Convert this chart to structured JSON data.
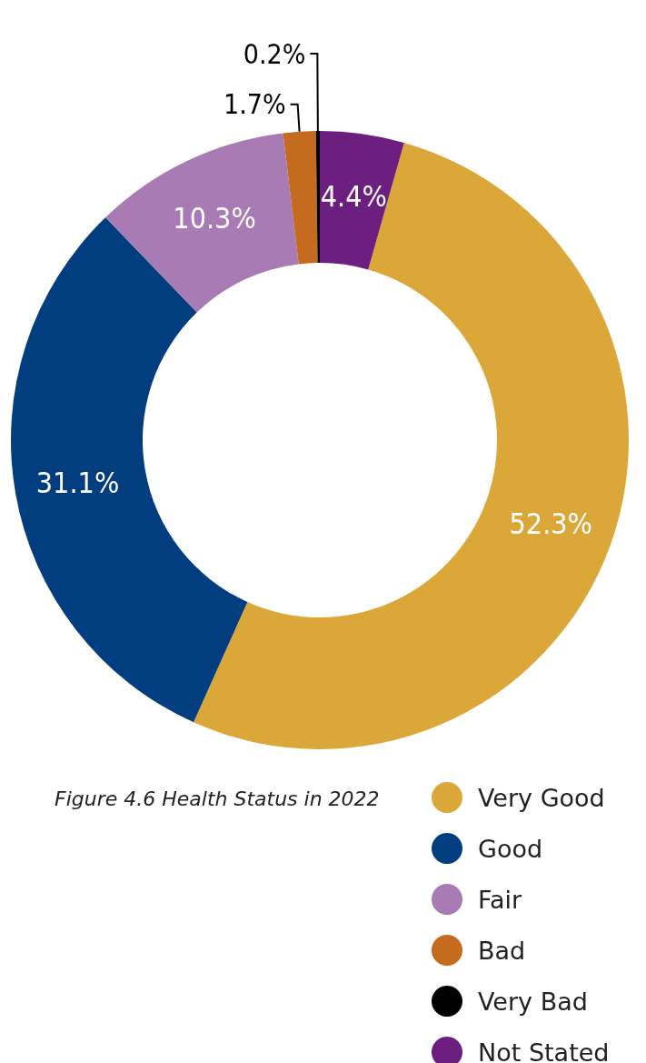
{
  "chart_data": {
    "type": "donut",
    "title": "Figure 4.6 Health Status in 2022",
    "categories": [
      "Very Good",
      "Good",
      "Fair",
      "Bad",
      "Very Bad",
      "Not Stated"
    ],
    "values": [
      52.3,
      31.1,
      10.3,
      1.7,
      0.2,
      4.4
    ],
    "colors": [
      "#dba739",
      "#023d80",
      "#a87bb5",
      "#c46b1f",
      "#000000",
      "#6c1f7f"
    ],
    "value_labels": [
      "52.3%",
      "31.1%",
      "10.3%",
      "1.7%",
      "0.2%",
      "4.4%"
    ],
    "legend": "bottom right"
  }
}
